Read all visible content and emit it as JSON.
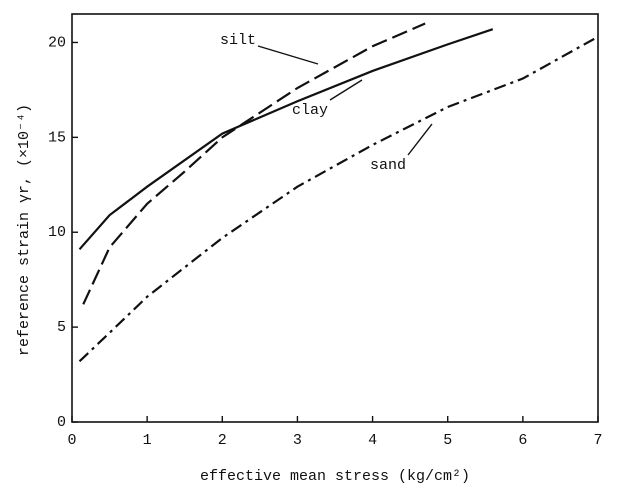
{
  "chart_data": {
    "type": "line",
    "xlabel": "effective mean stress (kg/cm²)",
    "ylabel": "reference strain γr, (×10⁻⁴)",
    "xlim": [
      0,
      7
    ],
    "xticks": [
      0,
      1,
      2,
      3,
      4,
      5,
      6,
      7
    ],
    "ylim": [
      0,
      21.5
    ],
    "yticks": [
      0,
      5,
      10,
      15,
      20
    ],
    "series": [
      {
        "name": "silt",
        "color": "#111111",
        "linestyle": "dashed",
        "x": [
          0.15,
          0.5,
          1,
          1.5,
          2,
          3,
          4,
          4.7
        ],
        "values": [
          6.2,
          9.2,
          11.5,
          13.2,
          15.0,
          17.6,
          19.8,
          21.0
        ]
      },
      {
        "name": "clay",
        "color": "#111111",
        "linestyle": "solid",
        "x": [
          0.1,
          0.5,
          1,
          2,
          3,
          4,
          5,
          5.6
        ],
        "values": [
          9.1,
          10.9,
          12.4,
          15.2,
          16.9,
          18.5,
          19.9,
          20.7
        ]
      },
      {
        "name": "sand",
        "color": "#111111",
        "linestyle": "dashdot",
        "x": [
          0.1,
          0.5,
          1,
          2,
          3,
          4,
          5,
          6,
          7
        ],
        "values": [
          3.2,
          4.7,
          6.6,
          9.7,
          12.4,
          14.6,
          16.6,
          18.1,
          20.3
        ]
      }
    ]
  }
}
